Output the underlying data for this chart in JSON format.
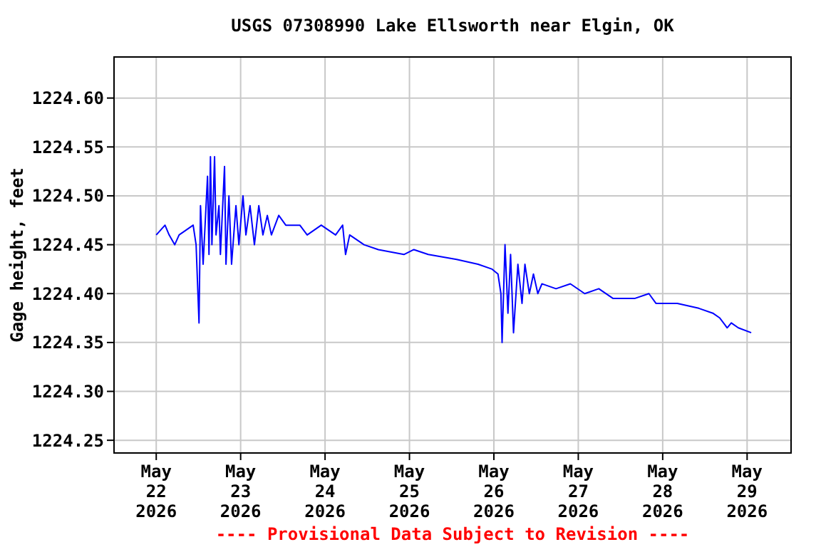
{
  "chart_data": {
    "type": "line",
    "title": "USGS 07308990 Lake Ellsworth near Elgin, OK",
    "ylabel": "Gage height, feet",
    "annotations": [
      "---- Provisional Data Subject to Revision ----"
    ],
    "x": [
      "2026-05-22T00:00",
      "2026-05-22T02:30",
      "2026-05-22T03:40",
      "2026-05-22T05:15",
      "2026-05-22T06:30",
      "2026-05-22T10:30",
      "2026-05-22T11:20",
      "2026-05-22T12:10",
      "2026-05-22T12:35",
      "2026-05-22T13:20",
      "2026-05-22T14:35",
      "2026-05-22T15:00",
      "2026-05-22T15:25",
      "2026-05-22T15:50",
      "2026-05-22T16:35",
      "2026-05-22T17:00",
      "2026-05-22T17:50",
      "2026-05-22T18:15",
      "2026-05-22T19:25",
      "2026-05-22T19:50",
      "2026-05-22T20:40",
      "2026-05-22T21:25",
      "2026-05-22T22:40",
      "2026-05-22T23:30",
      "2026-05-23T00:40",
      "2026-05-23T01:30",
      "2026-05-23T02:40",
      "2026-05-23T03:55",
      "2026-05-23T05:10",
      "2026-05-23T06:20",
      "2026-05-23T07:35",
      "2026-05-23T08:45",
      "2026-05-23T10:50",
      "2026-05-23T12:50",
      "2026-05-23T16:50",
      "2026-05-23T18:55",
      "2026-05-23T22:55",
      "2026-05-24T03:00",
      "2026-05-24T05:00",
      "2026-05-24T05:50",
      "2026-05-24T07:00",
      "2026-05-24T11:05",
      "2026-05-24T15:10",
      "2026-05-24T22:25",
      "2026-05-25T01:15",
      "2026-05-25T05:20",
      "2026-05-25T13:25",
      "2026-05-25T19:30",
      "2026-05-25T23:30",
      "2026-05-26T01:10",
      "2026-05-26T02:00",
      "2026-05-26T02:20",
      "2026-05-26T03:10",
      "2026-05-26T04:00",
      "2026-05-26T04:45",
      "2026-05-26T05:35",
      "2026-05-26T06:50",
      "2026-05-26T08:00",
      "2026-05-26T08:50",
      "2026-05-26T10:05",
      "2026-05-26T11:15",
      "2026-05-26T12:30",
      "2026-05-26T13:40",
      "2026-05-26T17:40",
      "2026-05-26T21:45",
      "2026-05-27T01:50",
      "2026-05-27T05:50",
      "2026-05-27T09:55",
      "2026-05-27T16:00",
      "2026-05-27T20:05",
      "2026-05-27T22:05",
      "2026-05-28T04:10",
      "2026-05-28T10:15",
      "2026-05-28T14:15",
      "2026-05-28T16:15",
      "2026-05-28T18:20",
      "2026-05-28T19:30",
      "2026-05-28T21:30",
      "2026-05-29T01:10"
    ],
    "series": [
      {
        "color": "#0000ff",
        "values": [
          1224.46,
          1224.47,
          1224.46,
          1224.45,
          1224.46,
          1224.47,
          1224.45,
          1224.37,
          1224.49,
          1224.43,
          1224.52,
          1224.44,
          1224.54,
          1224.45,
          1224.54,
          1224.46,
          1224.49,
          1224.44,
          1224.53,
          1224.43,
          1224.5,
          1224.43,
          1224.49,
          1224.45,
          1224.5,
          1224.46,
          1224.49,
          1224.45,
          1224.49,
          1224.46,
          1224.48,
          1224.46,
          1224.48,
          1224.47,
          1224.47,
          1224.46,
          1224.47,
          1224.46,
          1224.47,
          1224.44,
          1224.46,
          1224.45,
          1224.445,
          1224.44,
          1224.445,
          1224.44,
          1224.435,
          1224.43,
          1224.425,
          1224.42,
          1224.4,
          1224.35,
          1224.45,
          1224.38,
          1224.44,
          1224.36,
          1224.43,
          1224.39,
          1224.43,
          1224.4,
          1224.42,
          1224.4,
          1224.41,
          1224.405,
          1224.41,
          1224.4,
          1224.405,
          1224.395,
          1224.395,
          1224.4,
          1224.39,
          1224.39,
          1224.385,
          1224.38,
          1224.375,
          1224.365,
          1224.37,
          1224.365,
          1224.36
        ]
      }
    ],
    "xlim": [
      "2026-05-21T12:00",
      "2026-05-29T12:30"
    ],
    "xticks": [
      {
        "value": "2026-05-22",
        "label": "May\n22\n2026"
      },
      {
        "value": "2026-05-23",
        "label": "May\n23\n2026"
      },
      {
        "value": "2026-05-24",
        "label": "May\n24\n2026"
      },
      {
        "value": "2026-05-25",
        "label": "May\n25\n2026"
      },
      {
        "value": "2026-05-26",
        "label": "May\n26\n2026"
      },
      {
        "value": "2026-05-27",
        "label": "May\n27\n2026"
      },
      {
        "value": "2026-05-28",
        "label": "May\n28\n2026"
      },
      {
        "value": "2026-05-29",
        "label": "May\n29\n2026"
      }
    ],
    "ylim": [
      1224.237,
      1224.642
    ],
    "yticks": [
      {
        "value": 1224.25,
        "label": "1224.25"
      },
      {
        "value": 1224.3,
        "label": "1224.30"
      },
      {
        "value": 1224.35,
        "label": "1224.35"
      },
      {
        "value": 1224.4,
        "label": "1224.40"
      },
      {
        "value": 1224.45,
        "label": "1224.45"
      },
      {
        "value": 1224.5,
        "label": "1224.50"
      },
      {
        "value": 1224.55,
        "label": "1224.55"
      },
      {
        "value": 1224.6,
        "label": "1224.60"
      }
    ],
    "grid": true,
    "line_style": "solid",
    "marker": "none"
  }
}
